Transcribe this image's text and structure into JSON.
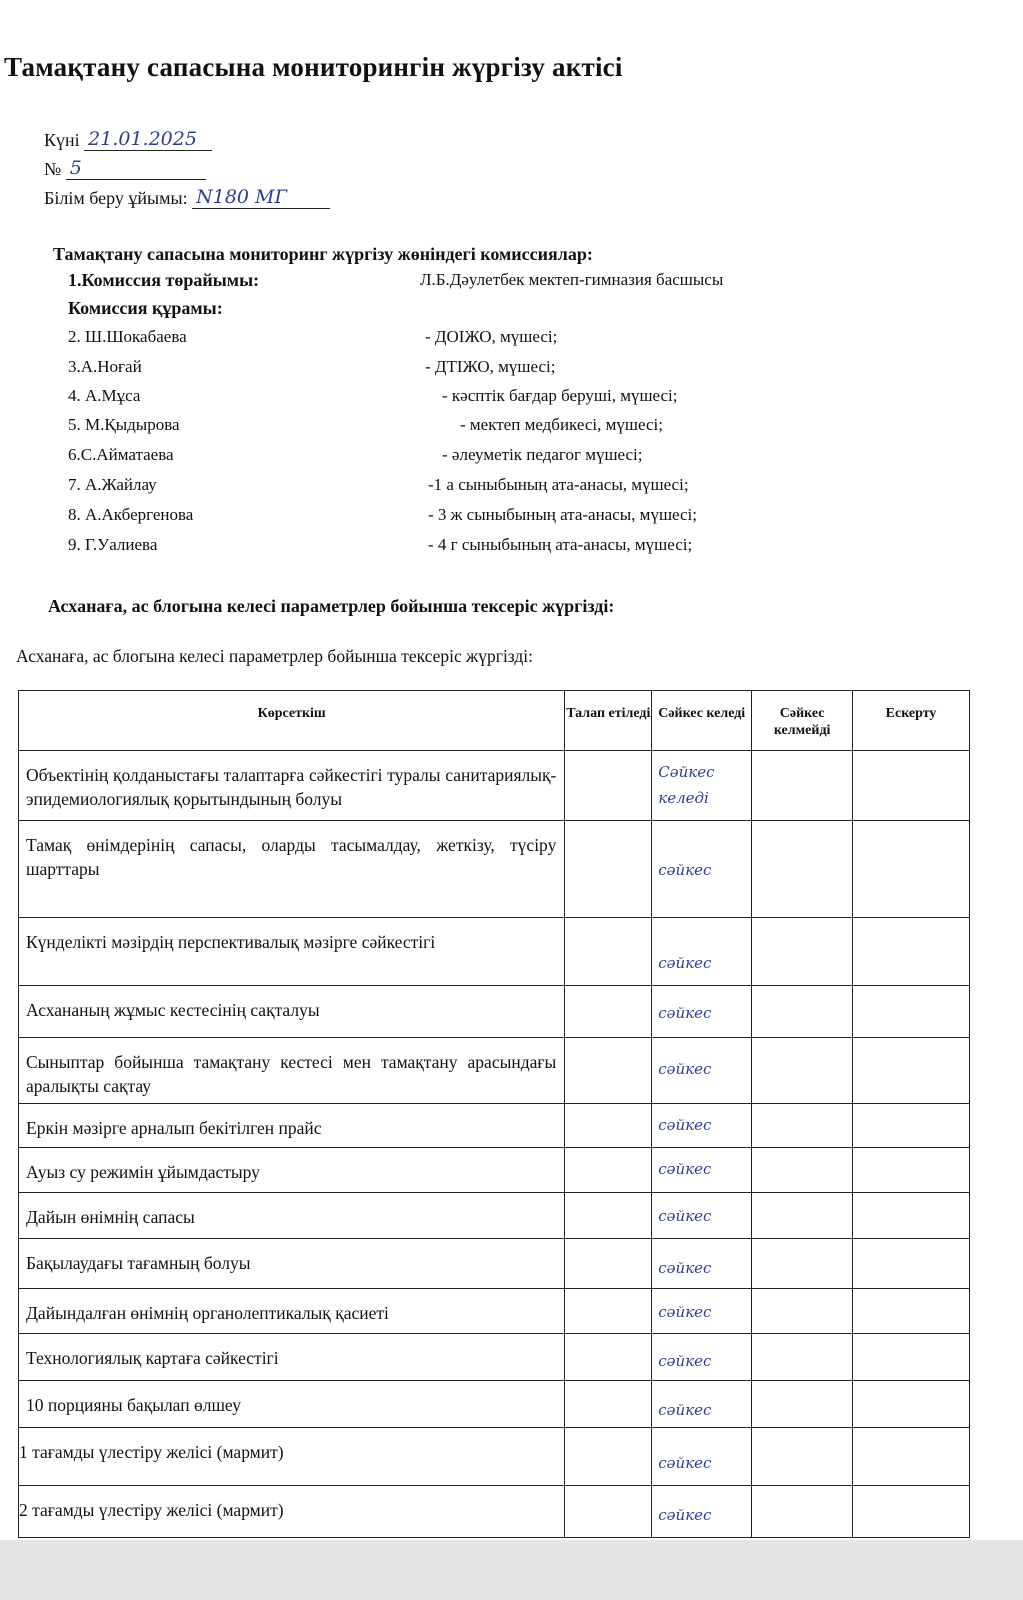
{
  "document": {
    "title": "Тамақтану сапасына мониторингін  жүргізу актісі",
    "date_label": "Күні",
    "date_value": "21.01.2025",
    "number_label": "№",
    "number_value": "5",
    "org_label": "Білім беру ұйымы:",
    "org_value": "N180 МГ",
    "commission_heading": "Тамақтану сапасына мониторинг  жүргізу жөніндегі комиссиялар:",
    "chair_label": "1.Комиссия төрайымы:",
    "chair_value": "Л.Б.Дәулетбек  мектеп-гимназия басшысы",
    "members_heading": "Комиссия құрамы:",
    "members": [
      {
        "name": "2. Ш.Шокабаева",
        "role": "- ДОІЖО, мүшесі;"
      },
      {
        "name": "3.А.Ноғай",
        "role": "- ДТІЖО, мүшесі;"
      },
      {
        "name": "4. А.Мұса",
        "role": "- кәсптік бағдар беруші, мүшесі;"
      },
      {
        "name": "5. М.Қыдырова",
        "role": "- мектеп медбикесі, мүшесі;"
      },
      {
        "name": "6.С.Айматаева",
        "role": "- әлеуметік педагог мүшесі;"
      },
      {
        "name": "7. А.Жайлау",
        "role": "-1 а сыныбының ата-анасы, мүшесі;"
      },
      {
        "name": "8. А.Акбергенова",
        "role": "- 3 ж сыныбының ата-анасы, мүшесі;"
      },
      {
        "name": "9. Г.Уалиева",
        "role": "- 4 г сыныбының ата-анасы, мүшесі;"
      }
    ],
    "section_bold": "Асханаға, ас блогына келесі параметрлер бойынша тексеріс жүргізді:",
    "section_plain": "Асханаға, ас блогына келесі параметрлер бойынша тексеріс жүргізді:"
  },
  "table": {
    "headers": [
      "Көрсеткіш",
      "Талап етіледі",
      "Сәйкес келеді",
      "Сәйкес келмейді",
      "Ескерту"
    ],
    "rows": [
      {
        "indicator": "Объектінің қолданыстағы талаптарға сәйкестігі туралы санитариялық-эпидемиологиялық қорытындының болуы",
        "mark": "Сәйкес келеді"
      },
      {
        "indicator": "Тамақ өнімдерінің сапасы, оларды тасымалдау, жеткізу, түсіру шарттары",
        "mark": "сәйкес"
      },
      {
        "indicator": "Күнделікті мәзірдің перспективалық мәзірге сәйкестігі",
        "mark": "сәйкес"
      },
      {
        "indicator": "Асхананың жұмыс кестесінің сақталуы",
        "mark": "сәйкес"
      },
      {
        "indicator": "Сыныптар бойынша тамақтану кестесі мен тамақтану арасындағы аралықты сақтау",
        "mark": "сәйкес"
      },
      {
        "indicator": "Еркін мәзірге арналып бекітілген прайс",
        "mark": "сәйкес"
      },
      {
        "indicator": "Ауыз су режимін ұйымдастыру",
        "mark": "сәйкес"
      },
      {
        "indicator": "Дайын өнімнің сапасы",
        "mark": "сәйкес"
      },
      {
        "indicator": "Бақылаудағы тағамның болуы",
        "mark": "сәйкес"
      },
      {
        "indicator": "Дайындалған өнімнің органолептикалық қасиеті",
        "mark": "сәйкес"
      },
      {
        "indicator": "Технологиялық картаға сәйкестігі",
        "mark": "сәйкес"
      },
      {
        "indicator": "10 порцияны бақылап өлшеу",
        "mark": "сәйкес"
      },
      {
        "indicator": "1 тағамды үлестіру желісі  (мармит)",
        "mark": "сәйкес"
      },
      {
        "indicator": "2 тағамды үлестіру желісі  (мармит)",
        "mark": "сәйкес"
      }
    ]
  },
  "colors": {
    "handwriting": "#2c3c94",
    "ink": "#111111"
  }
}
